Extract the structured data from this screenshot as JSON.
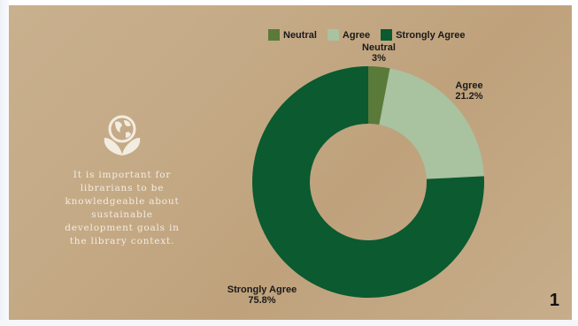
{
  "statement": "It is important for\nlibrarians to be\nknowledgeable about\nsustainable\ndevelopment goals in\nthe library context.",
  "page_number": "1",
  "icon": "globe-leaves-icon",
  "colors": {
    "Neutral": "#5a7a3a",
    "Agree": "#a9c2a0",
    "Strongly Agree": "#0b5a30"
  },
  "chart_data": {
    "type": "pie",
    "donut": true,
    "legend_position": "top",
    "slices": [
      {
        "label": "Neutral",
        "value": 3.0,
        "value_label": "3%"
      },
      {
        "label": "Agree",
        "value": 21.2,
        "value_label": "21.2%"
      },
      {
        "label": "Strongly Agree",
        "value": 75.8,
        "value_label": "75.8%"
      }
    ]
  }
}
